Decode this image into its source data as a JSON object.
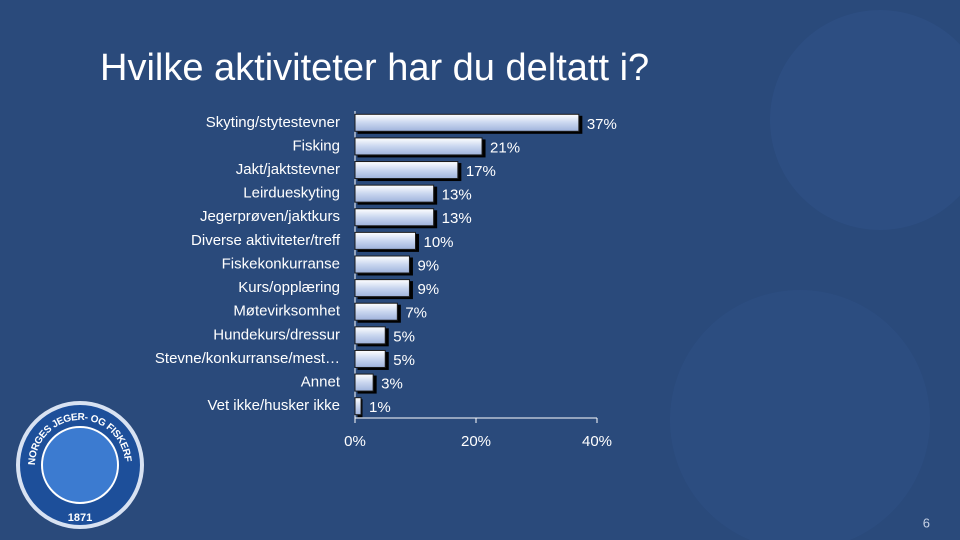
{
  "title": "Hvilke aktiviteter har du deltatt i?",
  "page_number": "6",
  "logo": {
    "ring_text": "NORGES JEGER- OG FISKERFORBUND",
    "year": "1871"
  },
  "chart_data": {
    "type": "bar",
    "orientation": "horizontal",
    "categories": [
      "Skyting/stytestevner",
      "Fisking",
      "Jakt/jaktstevner",
      "Leirdueskyting",
      "Jegerprøven/jaktkurs",
      "Diverse aktiviteter/treff",
      "Fiskekonkurranse",
      "Kurs/opplæring",
      "Møtevirksomhet",
      "Hundekurs/dressur",
      "Stevne/konkurranse/mest…",
      "Annet",
      "Vet ikke/husker ikke"
    ],
    "values": [
      37,
      21,
      17,
      13,
      13,
      10,
      9,
      9,
      7,
      5,
      5,
      3,
      1
    ],
    "value_labels": [
      "37%",
      "21%",
      "17%",
      "13%",
      "13%",
      "10%",
      "9%",
      "9%",
      "7%",
      "5%",
      "5%",
      "3%",
      "1%"
    ],
    "color": "#c9d6ef",
    "xlim": [
      0,
      40
    ],
    "xticks": [
      {
        "value": 0,
        "label": "0%"
      },
      {
        "value": 20,
        "label": "20%"
      },
      {
        "value": 40,
        "label": "40%"
      }
    ]
  }
}
